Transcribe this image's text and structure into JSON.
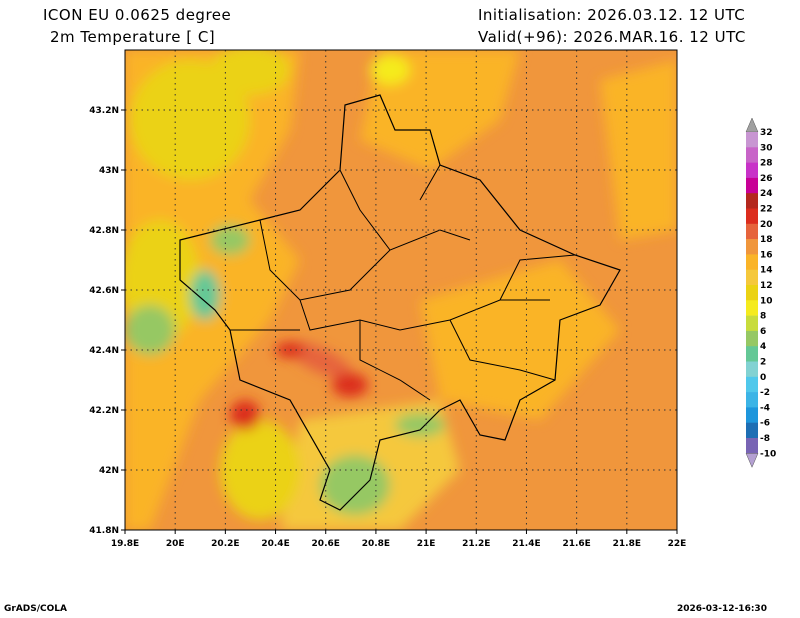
{
  "header": {
    "model": "ICON EU 0.0625 degree",
    "variable": "2m Temperature [ C]",
    "init": "Initialisation: 2026.03.12. 12 UTC",
    "valid": "Valid(+96): 2026.MAR.16. 12 UTC"
  },
  "map": {
    "lon_range": [
      19.8,
      22.0
    ],
    "lat_range": [
      41.8,
      43.4
    ],
    "lon_ticks": [
      {
        "v": 19.8,
        "label": "19.8E"
      },
      {
        "v": 20.0,
        "label": "20E"
      },
      {
        "v": 20.2,
        "label": "20.2E"
      },
      {
        "v": 20.4,
        "label": "20.4E"
      },
      {
        "v": 20.6,
        "label": "20.6E"
      },
      {
        "v": 20.8,
        "label": "20.8E"
      },
      {
        "v": 21.0,
        "label": "21E"
      },
      {
        "v": 21.2,
        "label": "21.2E"
      },
      {
        "v": 21.4,
        "label": "21.4E"
      },
      {
        "v": 21.6,
        "label": "21.6E"
      },
      {
        "v": 21.8,
        "label": "21.8E"
      },
      {
        "v": 22.0,
        "label": "22E"
      }
    ],
    "lat_ticks": [
      {
        "v": 41.8,
        "label": "41.8N"
      },
      {
        "v": 42.0,
        "label": "42N"
      },
      {
        "v": 42.2,
        "label": "42.2N"
      },
      {
        "v": 42.4,
        "label": "42.4N"
      },
      {
        "v": 42.6,
        "label": "42.6N"
      },
      {
        "v": 42.8,
        "label": "42.8N"
      },
      {
        "v": 43.0,
        "label": "43N"
      },
      {
        "v": 43.2,
        "label": "43.2N"
      }
    ]
  },
  "colorbar": {
    "labels": [
      "32",
      "30",
      "28",
      "26",
      "24",
      "22",
      "20",
      "18",
      "16",
      "14",
      "12",
      "10",
      "8",
      "6",
      "4",
      "2",
      "0",
      "-2",
      "-4",
      "-6",
      "-8",
      "-10"
    ],
    "band_colors": [
      "#c896d2",
      "#c864c8",
      "#c832c8",
      "#c80096",
      "#b4281e",
      "#dc2d1e",
      "#e6643c",
      "#f0963c",
      "#fab428",
      "#f5c83c",
      "#ebd214",
      "#f5eb1e",
      "#c8dc3c",
      "#96c864",
      "#64c896",
      "#82d2d2",
      "#50c8eb",
      "#3cb4e6",
      "#1e96dc",
      "#1e6eb4",
      "#7864b4"
    ],
    "over_color": "#a0a0a0",
    "under_color": "#b4a0d2"
  },
  "footer": {
    "left": "GrADS/COLA",
    "right": "2026-03-12-16:30"
  }
}
